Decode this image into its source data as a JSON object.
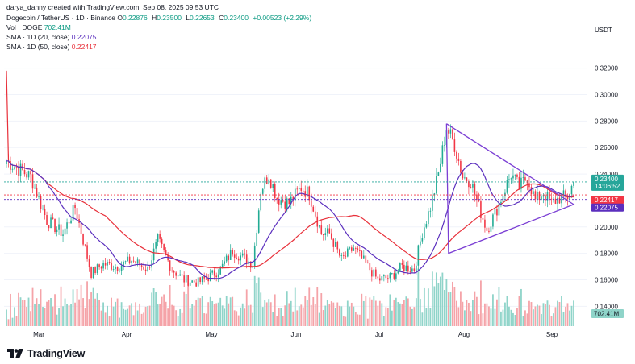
{
  "header": {
    "credit": "darya_danny created with TradingView.com, Sep 08, 2025 09:53 UTC",
    "symbol": "Dogecoin / TetherUS · 1D · Binance",
    "ohlc": [
      {
        "k": "O",
        "v": "0.22876"
      },
      {
        "k": "H",
        "v": "0.23500"
      },
      {
        "k": "L",
        "v": "0.22653"
      },
      {
        "k": "C",
        "v": "0.23400"
      }
    ],
    "change": "+0.00523 (+2.29%)",
    "vol_label": "Vol · DOGE",
    "vol_value": "702.41M",
    "sma20_label": "SMA · 1D (20, close)",
    "sma20_value": "0.22075",
    "sma50_label": "SMA · 1D (50, close)",
    "sma50_value": "0.22417"
  },
  "currency": "USDT",
  "brand": "TradingView",
  "colors": {
    "up": "#22ab94",
    "down": "#f23645",
    "sma20": "#5b2fbe",
    "sma50": "#e8303a",
    "triangle": "#7b3fd4",
    "vol_up": "#8fd4c9",
    "vol_down": "#f5a3a8",
    "price_tag": "#26a69a"
  },
  "price_tags": [
    {
      "label": "0.23400",
      "sub": "14:06:52",
      "color": "#26a69a"
    },
    {
      "label": "0.22417",
      "color": "#f23645"
    },
    {
      "label": "0.22075",
      "color": "#5b2fbe"
    }
  ],
  "volume_tag": "702.41M",
  "chart_data": {
    "type": "candlestick",
    "ylim": [
      0.125,
      0.335
    ],
    "y_ticks": [
      "0.32000",
      "0.30000",
      "0.28000",
      "0.26000",
      "0.24000",
      "0.20000",
      "0.18000",
      "0.16000",
      "0.14000"
    ],
    "x_ticks": [
      "Mar",
      "Apr",
      "May",
      "Jun",
      "Jul",
      "Aug",
      "Sep"
    ],
    "series": [
      {
        "name": "SMA · 1D (20, close)",
        "last": 0.22075
      },
      {
        "name": "SMA · 1D (50, close)",
        "last": 0.22417
      }
    ],
    "last_close": 0.234,
    "close_path": [
      [
        0,
        0.25
      ],
      [
        5,
        0.245
      ],
      [
        12,
        0.238
      ],
      [
        20,
        0.205
      ],
      [
        28,
        0.195
      ],
      [
        34,
        0.215
      ],
      [
        42,
        0.165
      ],
      [
        48,
        0.172
      ],
      [
        55,
        0.17
      ],
      [
        62,
        0.175
      ],
      [
        70,
        0.168
      ],
      [
        75,
        0.19
      ],
      [
        82,
        0.168
      ],
      [
        88,
        0.16
      ],
      [
        95,
        0.158
      ],
      [
        100,
        0.162
      ],
      [
        106,
        0.168
      ],
      [
        112,
        0.182
      ],
      [
        118,
        0.176
      ],
      [
        122,
        0.172
      ],
      [
        126,
        0.228
      ],
      [
        130,
        0.24
      ],
      [
        134,
        0.222
      ],
      [
        140,
        0.218
      ],
      [
        146,
        0.23
      ],
      [
        150,
        0.225
      ],
      [
        156,
        0.195
      ],
      [
        160,
        0.195
      ],
      [
        166,
        0.175
      ],
      [
        172,
        0.184
      ],
      [
        178,
        0.172
      ],
      [
        184,
        0.16
      ],
      [
        190,
        0.162
      ],
      [
        196,
        0.17
      ],
      [
        202,
        0.168
      ],
      [
        206,
        0.196
      ],
      [
        210,
        0.215
      ],
      [
        214,
        0.24
      ],
      [
        218,
        0.275
      ],
      [
        222,
        0.262
      ],
      [
        226,
        0.238
      ],
      [
        230,
        0.235
      ],
      [
        234,
        0.215
      ],
      [
        238,
        0.198
      ],
      [
        242,
        0.21
      ],
      [
        246,
        0.225
      ],
      [
        250,
        0.24
      ],
      [
        254,
        0.23
      ],
      [
        258,
        0.238
      ],
      [
        262,
        0.22
      ],
      [
        266,
        0.226
      ],
      [
        270,
        0.218
      ],
      [
        274,
        0.222
      ],
      [
        278,
        0.2229
      ],
      [
        281,
        0.234
      ]
    ],
    "volume_hint": "volume bars drawn along bottom"
  }
}
